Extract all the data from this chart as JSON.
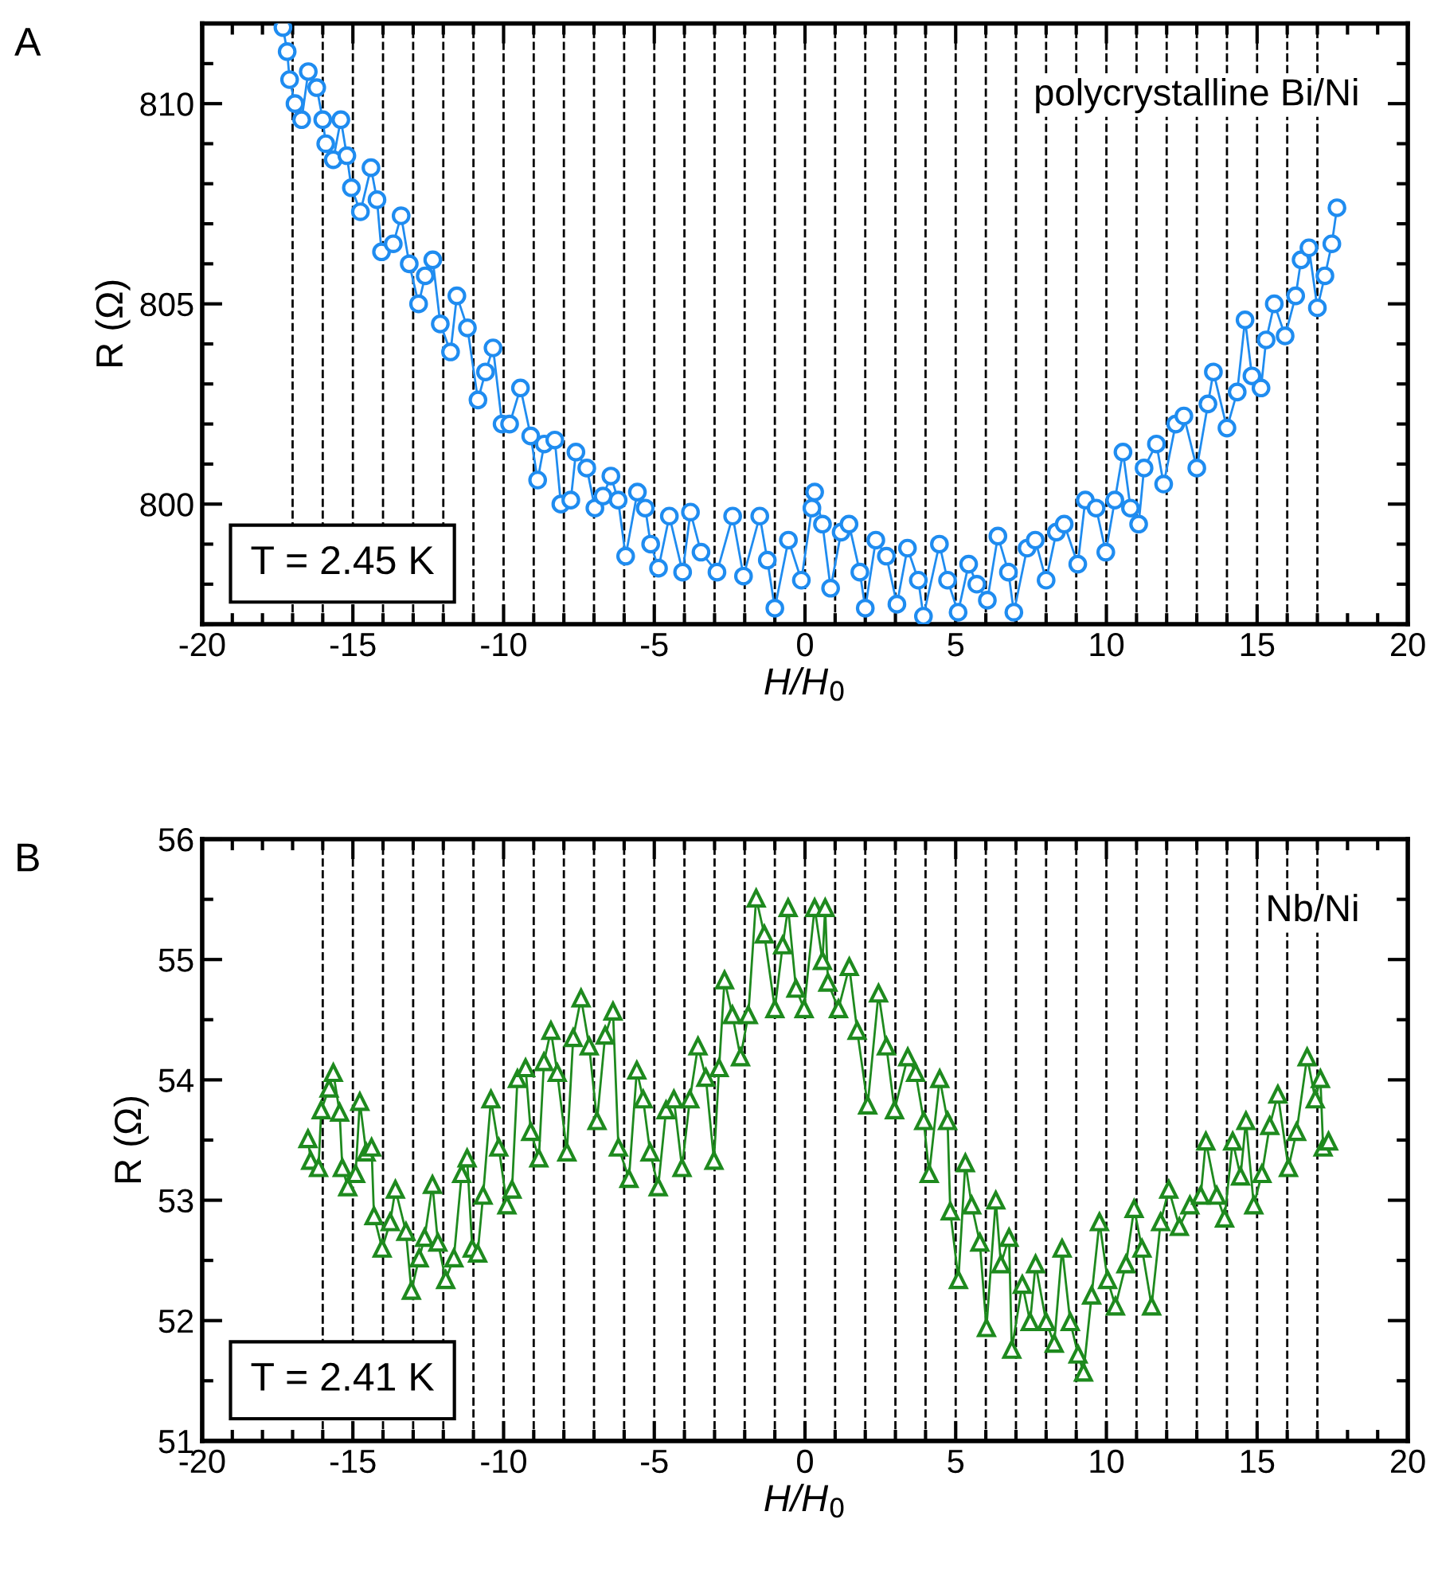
{
  "chart_data": [
    {
      "type": "line",
      "xlabel": "H/H$_{0}$",
      "ylabel": "R (Ω)",
      "marker": "circle",
      "line_style": "solid",
      "grid": false,
      "legend": false,
      "annotations": [
        "A",
        "T = 2.45 K",
        "polycrystalline Bi/Ni"
      ],
      "xlim": [
        -20,
        20
      ],
      "ylim": [
        797,
        812
      ],
      "xticks": [
        -20,
        {
          "value": -19,
          "label": null
        },
        {
          "value": -18,
          "label": null
        },
        {
          "value": -17,
          "label": null
        },
        {
          "value": -16,
          "label": null
        },
        -15,
        {
          "value": -14,
          "label": null
        },
        {
          "value": -13,
          "label": null
        },
        {
          "value": -12,
          "label": null
        },
        {
          "value": -11,
          "label": null
        },
        -10,
        {
          "value": -9,
          "label": null
        },
        {
          "value": -8,
          "label": null
        },
        {
          "value": -7,
          "label": null
        },
        {
          "value": -6,
          "label": null
        },
        -5,
        {
          "value": -4,
          "label": null
        },
        {
          "value": -3,
          "label": null
        },
        {
          "value": -2,
          "label": null
        },
        {
          "value": -1,
          "label": null
        },
        0,
        {
          "value": 1,
          "label": null
        },
        {
          "value": 2,
          "label": null
        },
        {
          "value": 3,
          "label": null
        },
        {
          "value": 4,
          "label": null
        },
        5,
        {
          "value": 6,
          "label": null
        },
        {
          "value": 7,
          "label": null
        },
        {
          "value": 8,
          "label": null
        },
        {
          "value": 9,
          "label": null
        },
        10,
        {
          "value": 11,
          "label": null
        },
        {
          "value": 12,
          "label": null
        },
        {
          "value": 13,
          "label": null
        },
        {
          "value": 14,
          "label": null
        },
        15,
        {
          "value": 16,
          "label": null
        },
        {
          "value": 17,
          "label": null
        },
        {
          "value": 18,
          "label": null
        },
        {
          "value": 19,
          "label": null
        },
        20
      ],
      "yticks": [
        {
          "value": 797,
          "label": null
        },
        {
          "value": 798,
          "label": null
        },
        {
          "value": 799,
          "label": null
        },
        800,
        {
          "value": 801,
          "label": null
        },
        {
          "value": 802,
          "label": null
        },
        {
          "value": 803,
          "label": null
        },
        {
          "value": 804,
          "label": null
        },
        805,
        {
          "value": 806,
          "label": null
        },
        {
          "value": 807,
          "label": null
        },
        {
          "value": 808,
          "label": null
        },
        {
          "value": 809,
          "label": null
        },
        810,
        {
          "value": 811,
          "label": null
        },
        {
          "value": 812,
          "label": null
        }
      ],
      "ref_lines": [
        {
          "axis": "x",
          "value": -17,
          "color": "#000000",
          "line_style": "dashed"
        },
        {
          "axis": "x",
          "value": -16,
          "color": "#000000",
          "line_style": "dashed"
        },
        {
          "axis": "x",
          "value": -15,
          "color": "#000000",
          "line_style": "dashed"
        },
        {
          "axis": "x",
          "value": -14,
          "color": "#000000",
          "line_style": "dashed"
        },
        {
          "axis": "x",
          "value": -13,
          "color": "#000000",
          "line_style": "dashed"
        },
        {
          "axis": "x",
          "value": -12,
          "color": "#000000",
          "line_style": "dashed"
        },
        {
          "axis": "x",
          "value": -11,
          "color": "#000000",
          "line_style": "dashed"
        },
        {
          "axis": "x",
          "value": -10,
          "color": "#000000",
          "line_style": "dashed"
        },
        {
          "axis": "x",
          "value": -9,
          "color": "#000000",
          "line_style": "dashed"
        },
        {
          "axis": "x",
          "value": -8,
          "color": "#000000",
          "line_style": "dashed"
        },
        {
          "axis": "x",
          "value": -7,
          "color": "#000000",
          "line_style": "dashed"
        },
        {
          "axis": "x",
          "value": -6,
          "color": "#000000",
          "line_style": "dashed"
        },
        {
          "axis": "x",
          "value": -5,
          "color": "#000000",
          "line_style": "dashed"
        },
        {
          "axis": "x",
          "value": -4,
          "color": "#000000",
          "line_style": "dashed"
        },
        {
          "axis": "x",
          "value": -3,
          "color": "#000000",
          "line_style": "dashed"
        },
        {
          "axis": "x",
          "value": -2,
          "color": "#000000",
          "line_style": "dashed"
        },
        {
          "axis": "x",
          "value": -1,
          "color": "#000000",
          "line_style": "dashed"
        },
        {
          "axis": "x",
          "value": 0,
          "color": "#000000",
          "line_style": "dashed"
        },
        {
          "axis": "x",
          "value": 1,
          "color": "#000000",
          "line_style": "dashed"
        },
        {
          "axis": "x",
          "value": 2,
          "color": "#000000",
          "line_style": "dashed"
        },
        {
          "axis": "x",
          "value": 3,
          "color": "#000000",
          "line_style": "dashed"
        },
        {
          "axis": "x",
          "value": 4,
          "color": "#000000",
          "line_style": "dashed"
        },
        {
          "axis": "x",
          "value": 5,
          "color": "#000000",
          "line_style": "dashed"
        },
        {
          "axis": "x",
          "value": 6,
          "color": "#000000",
          "line_style": "dashed"
        },
        {
          "axis": "x",
          "value": 7,
          "color": "#000000",
          "line_style": "dashed"
        },
        {
          "axis": "x",
          "value": 8,
          "color": "#000000",
          "line_style": "dashed"
        },
        {
          "axis": "x",
          "value": 9,
          "color": "#000000",
          "line_style": "dashed"
        },
        {
          "axis": "x",
          "value": 10,
          "color": "#000000",
          "line_style": "dashed"
        },
        {
          "axis": "x",
          "value": 11,
          "color": "#000000",
          "line_style": "dashed"
        },
        {
          "axis": "x",
          "value": 12,
          "color": "#000000",
          "line_style": "dashed"
        },
        {
          "axis": "x",
          "value": 13,
          "color": "#000000",
          "line_style": "dashed"
        },
        {
          "axis": "x",
          "value": 14,
          "color": "#000000",
          "line_style": "dashed"
        },
        {
          "axis": "x",
          "value": 15,
          "color": "#000000",
          "line_style": "dashed"
        },
        {
          "axis": "x",
          "value": 16,
          "color": "#000000",
          "line_style": "dashed"
        },
        {
          "axis": "x",
          "value": 17,
          "color": "#000000",
          "line_style": "dashed"
        }
      ],
      "series": [
        {
          "color": "#1f8cf0",
          "x": [
            -17.32,
            -17.18,
            -17.1,
            -16.92,
            -16.7,
            -16.48,
            -16.2,
            -16.0,
            -15.9,
            -15.65,
            -15.4,
            -15.2,
            -15.05,
            -14.75,
            -14.4,
            -14.2,
            -14.05,
            -13.66,
            -13.4,
            -13.13,
            -12.82,
            -12.6,
            -12.35,
            -12.1,
            -11.76,
            -11.55,
            -11.2,
            -10.85,
            -10.6,
            -10.35,
            -10.05,
            -9.8,
            -9.44,
            -9.1,
            -8.87,
            -8.65,
            -8.3,
            -8.1,
            -7.77,
            -7.6,
            -7.24,
            -6.97,
            -6.7,
            -6.44,
            -6.2,
            -5.95,
            -5.56,
            -5.3,
            -5.12,
            -4.86,
            -4.5,
            -4.06,
            -3.8,
            -3.45,
            -2.92,
            -2.4,
            -2.04,
            -1.5,
            -1.25,
            -1.0,
            -0.55,
            -0.12,
            0.23,
            0.32,
            0.58,
            0.85,
            1.2,
            1.46,
            1.82,
            2.0,
            2.35,
            2.7,
            3.05,
            3.4,
            3.76,
            3.93,
            4.46,
            4.73,
            5.08,
            5.43,
            5.7,
            6.05,
            6.4,
            6.75,
            6.93,
            7.37,
            7.64,
            8.0,
            8.34,
            8.6,
            9.05,
            9.3,
            9.66,
            9.98,
            10.28,
            10.55,
            10.8,
            11.07,
            11.25,
            11.66,
            11.9,
            12.3,
            12.57,
            13.0,
            13.37,
            13.55,
            14.0,
            14.34,
            14.6,
            14.83,
            15.13,
            15.3,
            15.57,
            15.93,
            16.28,
            16.46,
            16.72,
            17.0,
            17.25,
            17.48,
            17.65
          ],
          "values": [
            811.9,
            811.3,
            810.6,
            810.0,
            809.6,
            810.8,
            810.4,
            809.6,
            809.0,
            808.6,
            809.6,
            808.7,
            807.9,
            807.3,
            808.4,
            807.6,
            806.3,
            806.5,
            807.2,
            806.0,
            805.0,
            805.7,
            806.1,
            804.5,
            803.8,
            805.2,
            804.4,
            802.6,
            803.3,
            803.9,
            802.0,
            802.0,
            802.9,
            801.7,
            800.6,
            801.5,
            801.6,
            800.0,
            800.1,
            801.3,
            800.9,
            799.9,
            800.2,
            800.7,
            800.1,
            798.7,
            800.3,
            799.9,
            799.0,
            798.4,
            799.7,
            798.3,
            799.8,
            798.8,
            798.3,
            799.7,
            798.2,
            799.7,
            798.6,
            797.4,
            799.1,
            798.1,
            799.9,
            800.3,
            799.5,
            797.9,
            799.3,
            799.5,
            798.3,
            797.4,
            799.1,
            798.7,
            797.5,
            798.9,
            798.1,
            797.2,
            799.0,
            798.1,
            797.3,
            798.5,
            798.0,
            797.6,
            799.2,
            798.3,
            797.3,
            798.9,
            799.1,
            798.1,
            799.3,
            799.5,
            798.5,
            800.1,
            799.9,
            798.8,
            800.1,
            801.3,
            799.9,
            799.5,
            800.9,
            801.5,
            800.5,
            802.0,
            802.2,
            800.9,
            802.5,
            803.3,
            801.9,
            802.8,
            804.6,
            803.2,
            802.9,
            804.1,
            805.0,
            804.2,
            805.2,
            806.1,
            806.4,
            804.9,
            805.7,
            806.5,
            807.4
          ]
        }
      ]
    },
    {
      "type": "line",
      "xlabel": "H/H$_{0}$",
      "ylabel": "R (Ω)",
      "marker": "triangle",
      "line_style": "solid",
      "grid": false,
      "legend": false,
      "annotations": [
        "B",
        "T = 2.41 K",
        "Nb/Ni"
      ],
      "xlim": [
        -20,
        20
      ],
      "ylim": [
        51,
        56
      ],
      "xticks": [
        -20,
        {
          "value": -19,
          "label": null
        },
        {
          "value": -18,
          "label": null
        },
        {
          "value": -17,
          "label": null
        },
        {
          "value": -16,
          "label": null
        },
        -15,
        {
          "value": -14,
          "label": null
        },
        {
          "value": -13,
          "label": null
        },
        {
          "value": -12,
          "label": null
        },
        {
          "value": -11,
          "label": null
        },
        -10,
        {
          "value": -9,
          "label": null
        },
        {
          "value": -8,
          "label": null
        },
        {
          "value": -7,
          "label": null
        },
        {
          "value": -6,
          "label": null
        },
        -5,
        {
          "value": -4,
          "label": null
        },
        {
          "value": -3,
          "label": null
        },
        {
          "value": -2,
          "label": null
        },
        {
          "value": -1,
          "label": null
        },
        0,
        {
          "value": 1,
          "label": null
        },
        {
          "value": 2,
          "label": null
        },
        {
          "value": 3,
          "label": null
        },
        {
          "value": 4,
          "label": null
        },
        5,
        {
          "value": 6,
          "label": null
        },
        {
          "value": 7,
          "label": null
        },
        {
          "value": 8,
          "label": null
        },
        {
          "value": 9,
          "label": null
        },
        10,
        {
          "value": 11,
          "label": null
        },
        {
          "value": 12,
          "label": null
        },
        {
          "value": 13,
          "label": null
        },
        {
          "value": 14,
          "label": null
        },
        15,
        {
          "value": 16,
          "label": null
        },
        {
          "value": 17,
          "label": null
        },
        {
          "value": 18,
          "label": null
        },
        {
          "value": 19,
          "label": null
        },
        20
      ],
      "yticks": [
        51,
        {
          "value": 51.5,
          "label": null
        },
        52,
        {
          "value": 52.5,
          "label": null
        },
        53,
        {
          "value": 53.5,
          "label": null
        },
        54,
        {
          "value": 54.5,
          "label": null
        },
        55,
        {
          "value": 55.5,
          "label": null
        },
        56
      ],
      "ref_lines": [
        {
          "axis": "x",
          "value": -16,
          "color": "#000000",
          "line_style": "dashed"
        },
        {
          "axis": "x",
          "value": -15,
          "color": "#000000",
          "line_style": "dashed"
        },
        {
          "axis": "x",
          "value": -14,
          "color": "#000000",
          "line_style": "dashed"
        },
        {
          "axis": "x",
          "value": -13,
          "color": "#000000",
          "line_style": "dashed"
        },
        {
          "axis": "x",
          "value": -12,
          "color": "#000000",
          "line_style": "dashed"
        },
        {
          "axis": "x",
          "value": -11,
          "color": "#000000",
          "line_style": "dashed"
        },
        {
          "axis": "x",
          "value": -10,
          "color": "#000000",
          "line_style": "dashed"
        },
        {
          "axis": "x",
          "value": -9,
          "color": "#000000",
          "line_style": "dashed"
        },
        {
          "axis": "x",
          "value": -8,
          "color": "#000000",
          "line_style": "dashed"
        },
        {
          "axis": "x",
          "value": -7,
          "color": "#000000",
          "line_style": "dashed"
        },
        {
          "axis": "x",
          "value": -6,
          "color": "#000000",
          "line_style": "dashed"
        },
        {
          "axis": "x",
          "value": -5,
          "color": "#000000",
          "line_style": "dashed"
        },
        {
          "axis": "x",
          "value": -4,
          "color": "#000000",
          "line_style": "dashed"
        },
        {
          "axis": "x",
          "value": -3,
          "color": "#000000",
          "line_style": "dashed"
        },
        {
          "axis": "x",
          "value": -2,
          "color": "#000000",
          "line_style": "dashed"
        },
        {
          "axis": "x",
          "value": -1,
          "color": "#000000",
          "line_style": "dashed"
        },
        {
          "axis": "x",
          "value": 0,
          "color": "#000000",
          "line_style": "dashed"
        },
        {
          "axis": "x",
          "value": 1,
          "color": "#000000",
          "line_style": "dashed"
        },
        {
          "axis": "x",
          "value": 2,
          "color": "#000000",
          "line_style": "dashed"
        },
        {
          "axis": "x",
          "value": 3,
          "color": "#000000",
          "line_style": "dashed"
        },
        {
          "axis": "x",
          "value": 4,
          "color": "#000000",
          "line_style": "dashed"
        },
        {
          "axis": "x",
          "value": 5,
          "color": "#000000",
          "line_style": "dashed"
        },
        {
          "axis": "x",
          "value": 6,
          "color": "#000000",
          "line_style": "dashed"
        },
        {
          "axis": "x",
          "value": 7,
          "color": "#000000",
          "line_style": "dashed"
        },
        {
          "axis": "x",
          "value": 8,
          "color": "#000000",
          "line_style": "dashed"
        },
        {
          "axis": "x",
          "value": 9,
          "color": "#000000",
          "line_style": "dashed"
        },
        {
          "axis": "x",
          "value": 10,
          "color": "#000000",
          "line_style": "dashed"
        },
        {
          "axis": "x",
          "value": 11,
          "color": "#000000",
          "line_style": "dashed"
        },
        {
          "axis": "x",
          "value": 12,
          "color": "#000000",
          "line_style": "dashed"
        },
        {
          "axis": "x",
          "value": 13,
          "color": "#000000",
          "line_style": "dashed"
        },
        {
          "axis": "x",
          "value": 14,
          "color": "#000000",
          "line_style": "dashed"
        },
        {
          "axis": "x",
          "value": 15,
          "color": "#000000",
          "line_style": "dashed"
        },
        {
          "axis": "x",
          "value": 16,
          "color": "#000000",
          "line_style": "dashed"
        },
        {
          "axis": "x",
          "value": 17,
          "color": "#000000",
          "line_style": "dashed"
        }
      ],
      "series": [
        {
          "color": "#1e8a1e",
          "x": [
            -16.49,
            -16.4,
            -16.14,
            -16.05,
            -15.79,
            -15.65,
            -15.44,
            -15.35,
            -15.17,
            -14.91,
            -14.77,
            -14.56,
            -14.38,
            -14.3,
            -14.03,
            -13.76,
            -13.59,
            -13.24,
            -13.06,
            -12.8,
            -12.62,
            -12.36,
            -12.18,
            -11.92,
            -11.65,
            -11.39,
            -11.21,
            -11.04,
            -10.86,
            -10.68,
            -10.42,
            -10.16,
            -9.89,
            -9.72,
            -9.54,
            -9.27,
            -9.1,
            -8.83,
            -8.66,
            -8.43,
            -8.22,
            -7.9,
            -7.69,
            -7.43,
            -7.16,
            -6.9,
            -6.63,
            -6.37,
            -6.19,
            -5.84,
            -5.58,
            -5.37,
            -5.14,
            -4.87,
            -4.61,
            -4.35,
            -4.08,
            -3.82,
            -3.55,
            -3.29,
            -3.02,
            -2.85,
            -2.67,
            -2.41,
            -2.14,
            -1.88,
            -1.62,
            -1.35,
            -1.0,
            -0.74,
            -0.56,
            -0.3,
            -0.03,
            0.32,
            0.58,
            0.67,
            0.76,
            1.11,
            1.47,
            1.73,
            2.08,
            2.44,
            2.7,
            2.97,
            3.41,
            3.67,
            3.94,
            4.12,
            4.47,
            4.73,
            4.82,
            5.09,
            5.32,
            5.53,
            5.8,
            6.02,
            6.33,
            6.5,
            6.77,
            6.86,
            7.21,
            7.47,
            7.65,
            8.0,
            8.27,
            8.53,
            8.8,
            9.06,
            9.24,
            9.51,
            9.77,
            10.04,
            10.3,
            10.65,
            10.92,
            11.18,
            11.5,
            11.8,
            12.07,
            12.42,
            12.77,
            13.13,
            13.3,
            13.66,
            13.92,
            14.19,
            14.45,
            14.63,
            14.89,
            15.16,
            15.42,
            15.69,
            16.04,
            16.31,
            16.66,
            16.93,
            17.1,
            17.19,
            17.37
          ],
          "values": [
            53.51,
            53.33,
            53.27,
            53.75,
            53.93,
            54.06,
            53.73,
            53.27,
            53.11,
            53.22,
            53.82,
            53.4,
            53.44,
            52.87,
            52.6,
            52.82,
            53.09,
            52.74,
            52.25,
            52.52,
            52.69,
            53.13,
            52.65,
            52.34,
            52.52,
            53.22,
            53.35,
            52.6,
            52.56,
            53.04,
            53.84,
            53.44,
            52.96,
            53.09,
            54.01,
            54.1,
            53.57,
            53.35,
            54.15,
            54.41,
            54.06,
            53.4,
            54.35,
            54.68,
            54.28,
            53.66,
            54.37,
            54.57,
            53.44,
            53.18,
            54.08,
            53.84,
            53.4,
            53.11,
            53.75,
            53.84,
            53.27,
            53.84,
            54.28,
            54.02,
            53.33,
            54.1,
            54.83,
            54.54,
            54.19,
            54.54,
            55.51,
            55.21,
            54.59,
            55.12,
            55.43,
            54.76,
            54.59,
            55.43,
            54.99,
            55.43,
            54.81,
            54.59,
            54.94,
            54.41,
            53.79,
            54.72,
            54.28,
            53.75,
            54.19,
            54.06,
            53.66,
            53.22,
            54.01,
            53.66,
            52.91,
            52.34,
            53.31,
            52.96,
            52.65,
            51.94,
            53.0,
            52.47,
            52.69,
            51.76,
            52.3,
            51.99,
            52.47,
            51.99,
            51.81,
            52.6,
            51.99,
            51.72,
            51.57,
            52.21,
            52.82,
            52.34,
            52.12,
            52.47,
            52.93,
            52.6,
            52.12,
            52.82,
            53.09,
            52.78,
            52.96,
            53.04,
            53.49,
            53.04,
            52.85,
            53.49,
            53.2,
            53.66,
            52.96,
            53.22,
            53.62,
            53.88,
            53.27,
            53.57,
            54.19,
            53.84,
            54.01,
            53.44,
            53.49
          ]
        }
      ]
    }
  ]
}
